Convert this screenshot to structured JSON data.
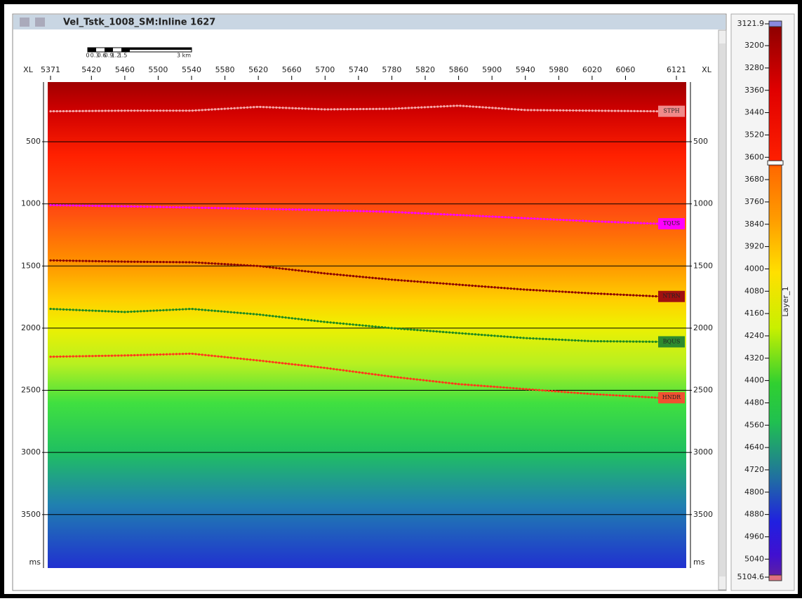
{
  "window": {
    "title": "Vel_Tstk_1008_SM:Inline 1627"
  },
  "scale_bar": {
    "labels": [
      "0",
      "0.3",
      "0.6",
      "0.9",
      "1.2",
      "1.5",
      "3 km"
    ]
  },
  "section": {
    "xaxis_label": "XL",
    "xlim": [
      5371,
      6121
    ],
    "xticks": [
      5371,
      5420,
      5460,
      5500,
      5540,
      5580,
      5620,
      5660,
      5700,
      5740,
      5780,
      5820,
      5860,
      5900,
      5940,
      5980,
      6020,
      6060,
      6121
    ],
    "yunit": "ms",
    "ylim": [
      20,
      3930
    ],
    "yticks": [
      500,
      1000,
      1500,
      2000,
      2500,
      3000,
      3500
    ],
    "grid": true,
    "horizons": [
      {
        "name": "STPH",
        "color": "#f6a8a8",
        "label_color": "#f08a8a",
        "x": [
          5371,
          5460,
          5540,
          5620,
          5700,
          5780,
          5860,
          5940,
          6020,
          6100
        ],
        "values": [
          255,
          250,
          250,
          220,
          240,
          235,
          210,
          245,
          250,
          255
        ]
      },
      {
        "name": "TQUS",
        "color": "#ff00ff",
        "label_color": "#ff00ff",
        "x": [
          5371,
          5460,
          5540,
          5620,
          5700,
          5780,
          5860,
          5940,
          6020,
          6100
        ],
        "values": [
          1010,
          1020,
          1030,
          1040,
          1050,
          1065,
          1090,
          1115,
          1140,
          1160
        ]
      },
      {
        "name": "NTRN",
        "color": "#8b0000",
        "label_color": "#a01010",
        "x": [
          5371,
          5460,
          5540,
          5620,
          5700,
          5780,
          5860,
          5940,
          6020,
          6100
        ],
        "values": [
          1455,
          1465,
          1470,
          1500,
          1560,
          1610,
          1650,
          1690,
          1720,
          1745
        ]
      },
      {
        "name": "BQUS",
        "color": "#1f8a1f",
        "label_color": "#2e8b2e",
        "x": [
          5371,
          5460,
          5540,
          5620,
          5700,
          5780,
          5860,
          5940,
          6020,
          6100
        ],
        "values": [
          1845,
          1870,
          1845,
          1890,
          1950,
          2000,
          2040,
          2080,
          2105,
          2110
        ]
      },
      {
        "name": "HNDR",
        "color": "#ff3a1a",
        "label_color": "#f05030",
        "x": [
          5371,
          5460,
          5540,
          5620,
          5700,
          5780,
          5860,
          5940,
          6020,
          6100
        ],
        "values": [
          2230,
          2220,
          2205,
          2260,
          2320,
          2390,
          2450,
          2490,
          2530,
          2560
        ]
      }
    ]
  },
  "colorbar": {
    "label": "Layer_1",
    "lim": [
      3121.9,
      5104.6
    ],
    "ticks": [
      3121.9,
      3200,
      3280,
      3360,
      3440,
      3520,
      3600,
      3680,
      3760,
      3840,
      3920,
      4000,
      4080,
      4160,
      4240,
      4320,
      4400,
      4480,
      4560,
      4640,
      4720,
      4800,
      4880,
      4960,
      5040,
      5104.6
    ]
  }
}
